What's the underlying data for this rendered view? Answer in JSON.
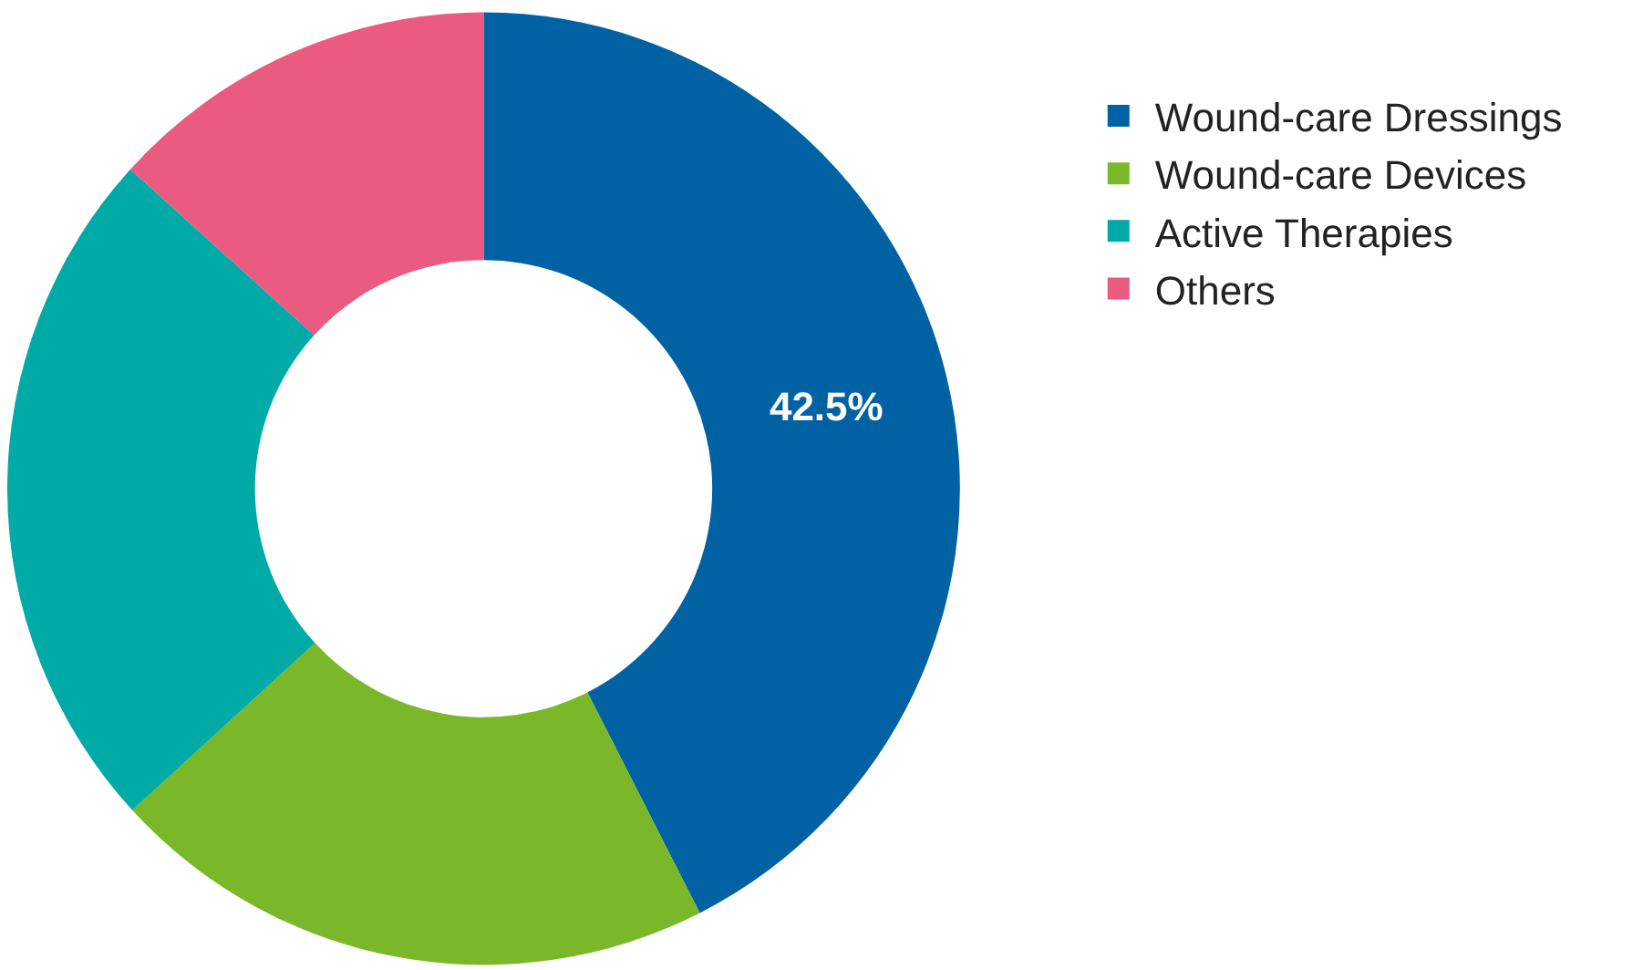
{
  "chart_data": {
    "type": "donut",
    "categories": [
      "Wound-care Dressings",
      "Wound-care Devices",
      "Active Therapies",
      "Others"
    ],
    "values": [
      42.5,
      20.7,
      23.5,
      13.3
    ],
    "colors": [
      "#0062a3",
      "#7ab829",
      "#00aaa7",
      "#eb5a80"
    ],
    "value_labels": [
      "42.5%",
      null,
      null,
      null
    ],
    "legend": "top right"
  }
}
